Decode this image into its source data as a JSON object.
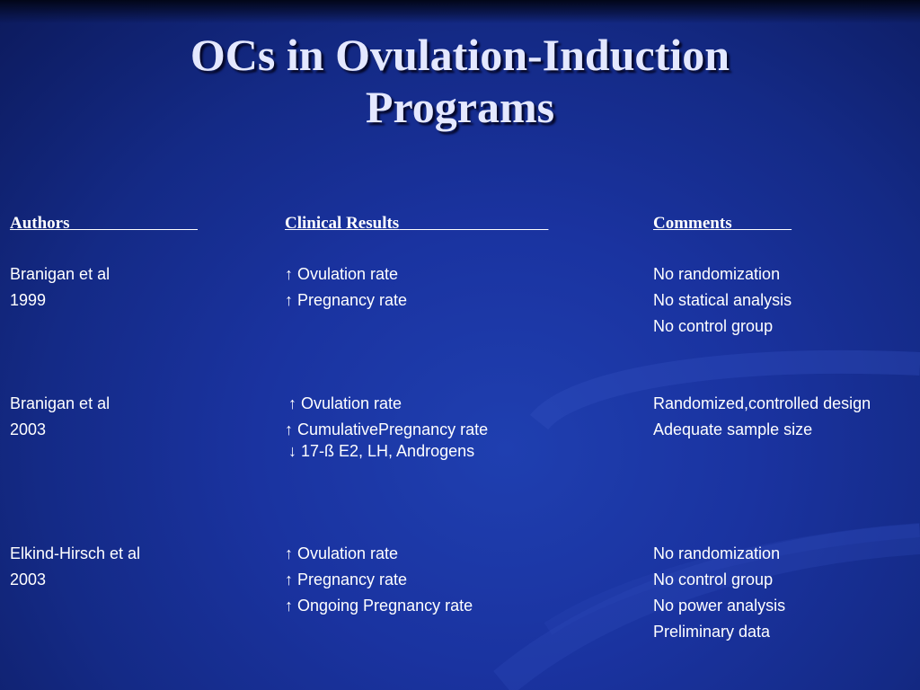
{
  "slide": {
    "title_line1": "OCs in Ovulation-Induction",
    "title_line2": "Programs"
  },
  "headers": {
    "authors": "Authors",
    "clinical_results": "Clinical Results",
    "comments": "Comments"
  },
  "studies": [
    {
      "author": "Branigan et al",
      "year": "1999",
      "results": [
        "↑ Ovulation rate",
        "↑ Pregnancy rate"
      ],
      "comments": [
        "No randomization",
        "No statical analysis",
        "No control group"
      ]
    },
    {
      "author": "Branigan et al",
      "year": "2003",
      "results": [
        "↑ Ovulation rate",
        "↑ CumulativePregnancy rate",
        "↓ 17-ß E2, LH, Androgens"
      ],
      "comments": [
        "Randomized,controlled design",
        "Adequate sample size"
      ]
    },
    {
      "author": "Elkind-Hirsch et al",
      "year": "2003",
      "results": [
        "↑ Ovulation rate",
        "↑ Pregnancy rate",
        "↑ Ongoing Pregnancy rate"
      ],
      "comments": [
        "No randomization",
        "No control group",
        "No power analysis",
        "Preliminary data"
      ]
    }
  ],
  "colors": {
    "background": "#1a33a0",
    "title": "#e4e8ff",
    "text": "#ffffff"
  }
}
